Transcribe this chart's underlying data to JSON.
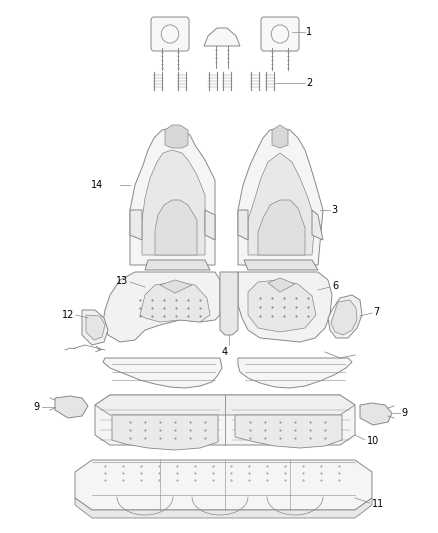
{
  "background_color": "#ffffff",
  "line_color": "#888888",
  "text_color": "#000000",
  "fig_width": 4.38,
  "fig_height": 5.33,
  "dpi": 100
}
